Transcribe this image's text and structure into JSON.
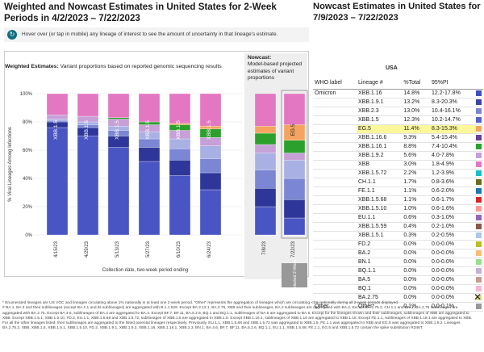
{
  "left_title": "Weighted and Nowcast Estimates in United States for 2-Week Periods in 4/2/2023 – 7/22/2023",
  "hover_text": "Hover over (or tap in mobile) any lineage of interest to see the amount of uncertainty in that lineage's estimate.",
  "weighted_title": "Weighted Estimates:",
  "weighted_desc": " Variant proportions based on reported genomic sequencing results",
  "nowcast_title": "Nowcast:",
  "nowcast_desc": "Model-based projected estimates of variant proportions",
  "right_title": "Nowcast Estimates in United States for 7/9/2023 – 7/22/2023",
  "region": "USA",
  "table_headers": [
    "WHO label",
    "Lineage #",
    "%Total",
    "95%PI"
  ],
  "table_rows": [
    {
      "who": "Omicron",
      "lineage": "XBB.1.16",
      "total": "14.8%",
      "pi": "12.2-17.8%",
      "color": "#3f4fbf",
      "hl": false
    },
    {
      "who": "",
      "lineage": "XBB.1.9.1",
      "total": "13.2%",
      "pi": "8.3-20.3%",
      "color": "#3a44a8",
      "hl": false
    },
    {
      "who": "",
      "lineage": "XBB.2.3",
      "total": "13.0%",
      "pi": "10.4-16.1%",
      "color": "#7b86d4",
      "hl": false
    },
    {
      "who": "",
      "lineage": "XBB.1.5",
      "total": "12.3%",
      "pi": "10.2-14.7%",
      "color": "#5661c9",
      "hl": false
    },
    {
      "who": "",
      "lineage": "EG.5",
      "total": "11.4%",
      "pi": "8.3-15.3%",
      "color": "#f4a460",
      "hl": true
    },
    {
      "who": "",
      "lineage": "XBB.1.16.6",
      "total": "9.3%",
      "pi": "5.4-15.4%",
      "color": "#6a3d9a",
      "hl": false
    },
    {
      "who": "",
      "lineage": "XBB.1.16.1",
      "total": "8.8%",
      "pi": "7.4-10.4%",
      "color": "#2ca02c",
      "hl": false
    },
    {
      "who": "",
      "lineage": "XBB.1.9.2",
      "total": "5.6%",
      "pi": "4.0-7.8%",
      "color": "#c7a0d8",
      "hl": false
    },
    {
      "who": "",
      "lineage": "XBB",
      "total": "3.0%",
      "pi": "1.8-4.9%",
      "color": "#e377c2",
      "hl": false
    },
    {
      "who": "",
      "lineage": "XBB.1.5.72",
      "total": "2.2%",
      "pi": "1.2-3.9%",
      "color": "#17becf",
      "hl": false
    },
    {
      "who": "",
      "lineage": "CH.1.1",
      "total": "1.7%",
      "pi": "0.8-3.6%",
      "color": "#6b6b1e",
      "hl": false
    },
    {
      "who": "",
      "lineage": "FE.1.1",
      "total": "1.1%",
      "pi": "0.6-2.0%",
      "color": "#1f77b4",
      "hl": false
    },
    {
      "who": "",
      "lineage": "XBB.1.5.68",
      "total": "1.1%",
      "pi": "0.6-1.7%",
      "color": "#d62728",
      "hl": false
    },
    {
      "who": "",
      "lineage": "XBB.1.5.10",
      "total": "1.0%",
      "pi": "0.6-1.6%",
      "color": "#ff9896",
      "hl": false
    },
    {
      "who": "",
      "lineage": "EU.1.1",
      "total": "0.6%",
      "pi": "0.3-1.0%",
      "color": "#9467bd",
      "hl": false
    },
    {
      "who": "",
      "lineage": "XBB.1.5.59",
      "total": "0.4%",
      "pi": "0.2-1.0%",
      "color": "#8c564b",
      "hl": false
    },
    {
      "who": "",
      "lineage": "XBB.1.5.1",
      "total": "0.3%",
      "pi": "0.2-0.5%",
      "color": "#aec7e8",
      "hl": false
    },
    {
      "who": "",
      "lineage": "FD.2",
      "total": "0.0%",
      "pi": "0.0-0.0%",
      "color": "#bcbd22",
      "hl": false
    },
    {
      "who": "",
      "lineage": "BA.2",
      "total": "0.0%",
      "pi": "0.0-0.0%",
      "color": "#ffbb78",
      "hl": false
    },
    {
      "who": "",
      "lineage": "BN.1",
      "total": "0.0%",
      "pi": "0.0-0.0%",
      "color": "#98df8a",
      "hl": false
    },
    {
      "who": "",
      "lineage": "BQ.1.1",
      "total": "0.0%",
      "pi": "0.0-0.0%",
      "color": "#c5b0d5",
      "hl": false
    },
    {
      "who": "",
      "lineage": "BA.5",
      "total": "0.0%",
      "pi": "0.0-0.0%",
      "color": "#c49c94",
      "hl": false
    },
    {
      "who": "",
      "lineage": "BQ.1",
      "total": "0.0%",
      "pi": "0.0-0.0%",
      "color": "#f7b6d2",
      "hl": false
    },
    {
      "who": "",
      "lineage": "BA.2.75",
      "total": "0.0%",
      "pi": "0.0-0.0%",
      "color": "#dbdb8d",
      "hl": false
    },
    {
      "who": "Other",
      "lineage": "Other*",
      "total": "0.1%",
      "pi": "0.0-0.1%",
      "color": "#999999",
      "hl": false
    }
  ],
  "footnote_1": "* Enumerated lineages are US VOC and lineages circulating above 1% nationally in at least one 2-week period. \"Other\" represents the aggregation of lineages which are circulating <1% nationally during all 2-week periods displayed.",
  "footnote_2": "# BA.1, BA.3 and their sublineages (except BA.1.1 and its sublineages) are aggregated with B.1.1.529. Except BA.2.12.1, BA.2.75, XBB and their sublineages, BA.2 sublineages are aggregated with BA.2. Except BA.2.75.2, CH.1.1 and BN.1, BA.2.75 sublineages are aggregated with BA.2.75. Except BA.4.6, sublineages of BA.4 are aggregated to BA.4. Except BF.7, BF.11, BA.5.2.6, BQ.1 and BQ.1.1, sublineages of BA.5 are aggregated to BA.5. Except for the lineages shown and their sublineages, sublineages of XBB are aggregated to XBB. Except XBB.1.5.1, XBB.1.5.10, FD.2, EU.1.1, XBB.1.5.68 and XBB.1.5.72, sublineages of XBB.1.5 are aggregated to XBB.1.5. Except XBB.1.16.1, sublineages of XBB.1.16 are aggregated to XBB.1.16. Except FE.1.1, sublineages of XBB.1.18.1 are aggregated to XBB. For all the other lineages listed, their sublineages are aggregated to the listed parental lineages respectively. Previously, EU.1.1, XBB.1.5.68 and XBB.1.5.72 was aggregated to XBB.1.5, FE.1.1 was aggregated to XBB and EG.5 was aggregated to XBB.1.9.2. Lineages BA.2.75.2, XBB, XBB.1.5, XBB.1.5.1, XBB.1.5.10, FD.2, XBB.1.9.1, XBB.1.9.2, XBB.1.16, XBB.1.16.1, XBB.2.3, BN.1, BA.4.6, BF.7, BF.11, BA.5.2.6, BQ.1.1, EU.1.1, XBB.1.5.68, FE.1.1, EG.5 and XBB.1.5.72 contain the spike substitution R346T.",
  "chart_data": {
    "type": "bar",
    "stacked": true,
    "title": "Weighted and Nowcast Estimates in United States for 2-Week Periods in 4/2/2023 – 7/22/2023",
    "ylabel": "% Viral Lineages Among Infections",
    "xlabel": "Collection date, two-week period ending",
    "ylim": [
      0,
      100
    ],
    "yticks": [
      "0%",
      "20%",
      "40%",
      "60%",
      "80%",
      "100%"
    ],
    "categories": [
      "4/15/23",
      "4/29/23",
      "5/13/23",
      "5/27/23",
      "6/10/23",
      "6/24/23",
      "7/8/23",
      "7/22/23"
    ],
    "nowcast_categories": [
      "7/8/23",
      "7/22/23"
    ],
    "selected_label": "Selected 2-Week",
    "bar_annotations": [
      "XBB.1.5",
      "XBB.1.5",
      "XBB.1.5",
      "XBB.1.5",
      "XBB.1.5",
      "XBB.1.5",
      "",
      "EG.5"
    ],
    "series": [
      {
        "name": "XBB.1.5",
        "color": "#4a55c4",
        "values": [
          76,
          70,
          62,
          52,
          42,
          32,
          20,
          12
        ]
      },
      {
        "name": "XBB.1.9.1",
        "color": "#2e3799",
        "values": [
          4,
          6,
          8,
          10,
          11,
          12,
          13,
          13
        ]
      },
      {
        "name": "XBB.1.16",
        "color": "#7b86d4",
        "values": [
          1,
          2,
          4,
          6,
          8,
          10,
          13,
          15
        ]
      },
      {
        "name": "XBB.2.3",
        "color": "#a9b0e3",
        "values": [
          1,
          2,
          3,
          5,
          7,
          9,
          12,
          13
        ]
      },
      {
        "name": "XBB.1.9.2",
        "color": "#c7a0d8",
        "values": [
          3,
          4,
          5,
          5,
          6,
          6,
          6,
          5
        ]
      },
      {
        "name": "XBB.1.16.1",
        "color": "#2ca02c",
        "values": [
          0,
          0,
          1,
          2,
          4,
          6,
          8,
          9
        ]
      },
      {
        "name": "EG.5",
        "color": "#f4a460",
        "values": [
          0,
          0,
          0,
          0,
          1,
          2,
          5,
          11
        ]
      },
      {
        "name": "Other lineages",
        "color": "#e377c2",
        "values": [
          15,
          16,
          17,
          20,
          21,
          23,
          23,
          22
        ]
      }
    ]
  }
}
